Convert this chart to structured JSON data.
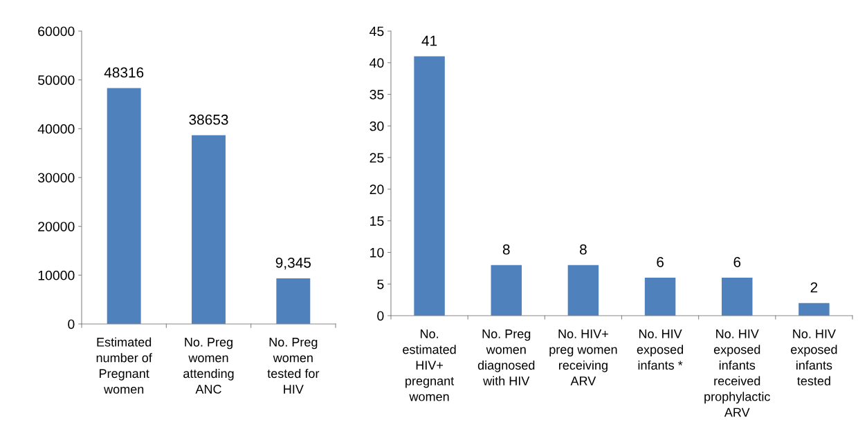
{
  "chart_data": [
    {
      "type": "bar",
      "categories": [
        "Estimated\nnumber of\nPregnant\nwomen",
        "No. Preg\nwomen\nattending\nANC",
        "No. Preg\nwomen\ntested for\nHIV"
      ],
      "values": [
        48316,
        38653,
        9345
      ],
      "value_labels": [
        "48316",
        "38653",
        "9,345"
      ],
      "color": "#4f81bd",
      "ylim": [
        0,
        60000
      ],
      "yticks": [
        0,
        10000,
        20000,
        30000,
        40000,
        50000,
        60000
      ],
      "grid": false,
      "legend": false
    },
    {
      "type": "bar",
      "categories": [
        "No.\nestimated\nHIV+\npregnant\nwomen",
        "No. Preg\nwomen\ndiagnosed\nwith HIV",
        "No. HIV+\npreg women\nreceiving\nARV",
        "No. HIV\nexposed\ninfants *",
        "No. HIV\nexposed\ninfants\nreceived\nprophylactic\nARV",
        "No. HIV\nexposed\ninfants\ntested"
      ],
      "values": [
        41,
        8,
        8,
        6,
        6,
        2
      ],
      "data_labels": true,
      "color": "#4f81bd",
      "ylim": [
        0,
        45
      ],
      "yticks": [
        0,
        5,
        10,
        15,
        20,
        25,
        30,
        35,
        40,
        45
      ],
      "grid": false,
      "legend": false
    }
  ]
}
